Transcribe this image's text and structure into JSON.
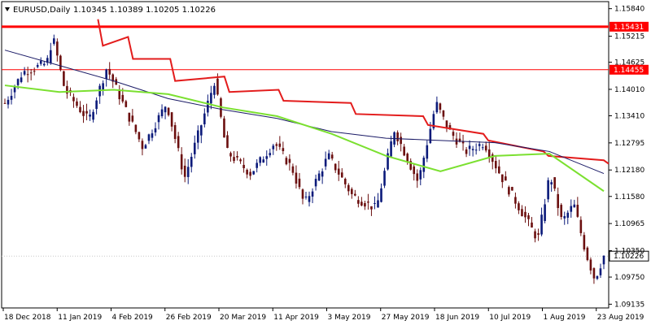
{
  "header": {
    "symbol": "EURUSD,Daily",
    "ohlc": "1.10345 1.10389 1.10205 1.10226"
  },
  "chart_data": {
    "type": "candlestick",
    "y_ticks": [
      "1.15840",
      "1.15215",
      "1.14625",
      "1.14010",
      "1.13410",
      "1.12795",
      "1.12180",
      "1.11580",
      "1.10965",
      "1.10350",
      "1.09750",
      "1.09135"
    ],
    "x_ticks": [
      "18 Dec 2018",
      "11 Jan 2019",
      "4 Feb 2019",
      "26 Feb 2019",
      "20 Mar 2019",
      "11 Apr 2019",
      "3 May 2019",
      "27 May 2019",
      "18 Jun 2019",
      "10 Jul 2019",
      "1 Aug 2019",
      "23 Aug 2019"
    ],
    "ylim": [
      1.0905,
      1.16
    ],
    "horizontal_levels": [
      {
        "value": 1.15431,
        "label": "1.15431",
        "color": "#ff0000"
      },
      {
        "value": 1.14455,
        "label": "1.14455",
        "color": "#ff0000"
      }
    ],
    "current_price": {
      "value": 1.10226,
      "label": "1.10226"
    },
    "colors": {
      "bull": "#0b1a7a",
      "bear": "#6b0f0f",
      "ma_slow": "#e31c1c",
      "ma_mid": "#1a1a66",
      "ma_fast": "#7be030"
    },
    "ma_slow": [
      [
        1.156,
        1.15
      ],
      [
        1.152,
        1.147
      ],
      [
        1.147,
        1.142
      ],
      [
        1.143,
        1.1395
      ],
      [
        1.14,
        1.1375
      ],
      [
        1.137,
        1.1345
      ],
      [
        1.134,
        1.132
      ],
      [
        1.13,
        1.1285
      ],
      [
        1.126,
        1.125
      ],
      [
        1.124,
        1.1232
      ]
    ],
    "ma_slow_x": [
      0.16,
      0.21,
      0.28,
      0.37,
      0.46,
      0.58,
      0.7,
      0.8,
      0.9,
      1.0
    ],
    "ma_mid": [
      1.149,
      1.1455,
      1.142,
      1.138,
      1.1355,
      1.1335,
      1.1305,
      1.129,
      1.1285,
      1.128,
      1.126,
      1.121
    ],
    "ma_fast": [
      1.141,
      1.1395,
      1.14,
      1.139,
      1.136,
      1.134,
      1.13,
      1.125,
      1.1215,
      1.125,
      1.1255,
      1.117
    ]
  }
}
